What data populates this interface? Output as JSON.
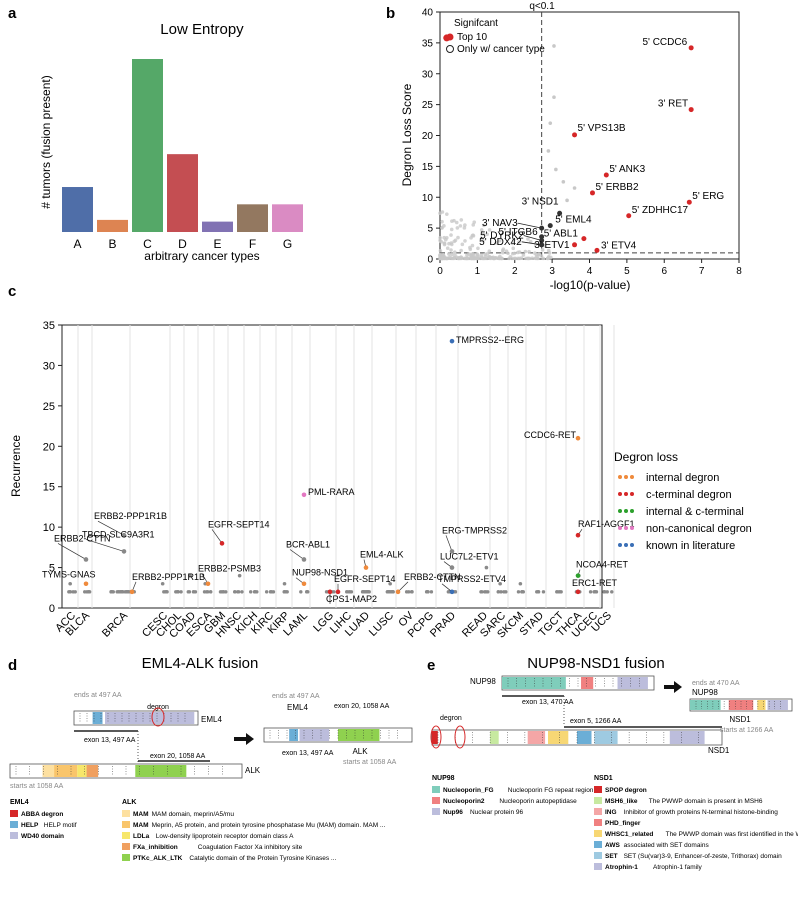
{
  "panel_letters": [
    "a",
    "b",
    "c",
    "d",
    "e"
  ],
  "chart_data": [
    {
      "id": "a",
      "type": "bar",
      "title": "Low Entropy",
      "xlabel": "arbitrary cancer types",
      "ylabel": "# tumors (fusion present)",
      "categories": [
        "A",
        "B",
        "C",
        "D",
        "E",
        "F",
        "G"
      ],
      "values": [
        0.26,
        0.07,
        1.0,
        0.45,
        0.06,
        0.16,
        0.16
      ],
      "colors": [
        "#4f6ea8",
        "#dd8452",
        "#55a868",
        "#c44e52",
        "#8172b3",
        "#937860",
        "#da8bc3"
      ]
    },
    {
      "id": "b",
      "type": "scatter",
      "xlabel": "-log10(p-value)",
      "ylabel": "Degron Loss Score",
      "xlim": [
        0,
        8
      ],
      "ylim": [
        0,
        40
      ],
      "xticks": [
        "0",
        "1",
        "2",
        "3",
        "4",
        "5",
        "6",
        "7",
        "8"
      ],
      "yticks": [
        "0",
        "5",
        "10",
        "15",
        "20",
        "25",
        "30",
        "35",
        "40"
      ],
      "vline_label": "q<0.1",
      "vline_x": 2.72,
      "hline_y": 1.0,
      "legend": {
        "title": "Signifcant",
        "items": [
          "Top 10",
          "Only w/ cancer type"
        ]
      },
      "labeled_points": [
        {
          "label": "5' CCDC6",
          "x": 6.72,
          "y": 34.2,
          "color": "#d62728"
        },
        {
          "label": "3' RET",
          "x": 6.72,
          "y": 24.2,
          "color": "#d62728"
        },
        {
          "label": "5' VPS13B",
          "x": 3.6,
          "y": 20.1,
          "color": "#d62728"
        },
        {
          "label": "5' ANK3",
          "x": 4.45,
          "y": 13.6,
          "color": "#d62728"
        },
        {
          "label": "5' ERBB2",
          "x": 4.08,
          "y": 10.7,
          "color": "#d62728"
        },
        {
          "label": "5' ERG",
          "x": 6.67,
          "y": 9.2,
          "color": "#d62728"
        },
        {
          "label": "5' ZDHHC17",
          "x": 5.05,
          "y": 7.0,
          "color": "#d62728"
        },
        {
          "label": "3' NSD1",
          "x": 3.2,
          "y": 7.4,
          "color": "#333333"
        },
        {
          "label": "5' EML4",
          "x": 2.95,
          "y": 5.4,
          "color": "#333333"
        },
        {
          "label": "3' NAV3",
          "x": 2.72,
          "y": 5.0,
          "color": "#333333"
        },
        {
          "label": "5' ITGB6",
          "x": 2.72,
          "y": 3.6,
          "color": "#333333"
        },
        {
          "label": "5' DYRK2",
          "x": 2.72,
          "y": 3.0,
          "color": "#333333"
        },
        {
          "label": "5' ABL1",
          "x": 3.85,
          "y": 3.3,
          "color": "#d62728"
        },
        {
          "label": "5' DDX42",
          "x": 2.72,
          "y": 2.3,
          "color": "#333333"
        },
        {
          "label": "3' ETV1",
          "x": 3.6,
          "y": 2.3,
          "color": "#d62728"
        },
        {
          "label": "3' ETV4",
          "x": 4.2,
          "y": 1.4,
          "color": "#d62728"
        }
      ]
    },
    {
      "id": "c",
      "type": "scatter",
      "ylabel": "Recurrence",
      "ylim": [
        0,
        35
      ],
      "yticks": [
        "0",
        "5",
        "10",
        "15",
        "20",
        "25",
        "30",
        "35"
      ],
      "categories": [
        "ACC",
        "BLCA",
        "BRCA",
        "CESC",
        "CHOL",
        "COAD",
        "ESCA",
        "GBM",
        "HNSC",
        "KICH",
        "KIRC",
        "KIRP",
        "LAML",
        "LGG",
        "LIHC",
        "LUAD",
        "LUSC",
        "OV",
        "PCPG",
        "PRAD",
        "READ",
        "SARC",
        "SKCM",
        "STAD",
        "TGCT",
        "THCA",
        "UCEC",
        "UCS"
      ],
      "legend": {
        "title": "Degron loss",
        "items": [
          {
            "name": "internal degron",
            "color": "#ef8a3c"
          },
          {
            "name": "c-terminal degron",
            "color": "#d62728"
          },
          {
            "name": "internal & c-terminal",
            "color": "#2ca02c"
          },
          {
            "name": "non-canonical degron",
            "color": "#e377c2"
          },
          {
            "name": "known in literature",
            "color": "#3b6fb6"
          }
        ]
      },
      "labeled_points": [
        {
          "label": "TMPRSS2--ERG",
          "cat": "PRAD",
          "y": 33,
          "color": "#3b6fb6"
        },
        {
          "label": "CCDC6-RET",
          "cat": "THCA",
          "y": 21,
          "color": "#ef8a3c"
        },
        {
          "label": "PML-RARA",
          "cat": "LAML",
          "y": 14,
          "color": "#e377c2"
        },
        {
          "label": "RAF1-AGGF1",
          "cat": "THCA",
          "y": 9,
          "color": "#d62728"
        },
        {
          "label": "ERBB2-PPP1R1B",
          "cat": "BRCA",
          "y": 9,
          "color": "#888888"
        },
        {
          "label": "EGFR-SEPT14",
          "cat": "GBM",
          "y": 8,
          "color": "#d62728"
        },
        {
          "label": "TBCD-SLC9A3R1",
          "cat": "BRCA",
          "y": 7,
          "color": "#888888"
        },
        {
          "label": "ERBB2-CTTN",
          "cat": "BLCA",
          "y": 6,
          "color": "#888888"
        },
        {
          "label": "ERG-TMPRSS2",
          "cat": "PRAD",
          "y": 7,
          "color": "#888888"
        },
        {
          "label": "BCR-ABL1",
          "cat": "LAML",
          "y": 6,
          "color": "#888888"
        },
        {
          "label": "EML4-ALK",
          "cat": "LUAD",
          "y": 5,
          "color": "#ef8a3c"
        },
        {
          "label": "LUC7L2-ETV1",
          "cat": "PRAD",
          "y": 5,
          "color": "#888888"
        },
        {
          "label": "NCOA4-RET",
          "cat": "THCA",
          "y": 4,
          "color": "#2ca02c"
        },
        {
          "label": "TYMS-GNAS",
          "cat": "BLCA",
          "y": 3,
          "color": "#ef8a3c"
        },
        {
          "label": "ERBB2-PSMB3",
          "cat": "ESCA",
          "y": 3,
          "color": "#ef8a3c"
        },
        {
          "label": "NUP98-NSD1",
          "cat": "LAML",
          "y": 3,
          "color": "#ef8a3c"
        },
        {
          "label": "ERBB2-PPP1R1B",
          "cat": "BRCA",
          "y": 2,
          "color": "#ef8a3c"
        },
        {
          "label": "EGFR-SEPT14",
          "cat": "LGG",
          "y": 2,
          "color": "#d62728"
        },
        {
          "label": "CPS1-MAP2",
          "cat": "LGG",
          "y": 2,
          "color": "#d62728"
        },
        {
          "label": "ERBB2-CTTN",
          "cat": "LUSC",
          "y": 2,
          "color": "#ef8a3c"
        },
        {
          "label": "TMPRSS2-ETV4",
          "cat": "PRAD",
          "y": 2,
          "color": "#3b6fb6"
        },
        {
          "label": "ERC1-RET",
          "cat": "THCA",
          "y": 2,
          "color": "#d62728"
        }
      ]
    }
  ],
  "panel_d": {
    "title": "EML4-ALK fusion",
    "eml4_label": "EML4",
    "alk_label": "ALK",
    "ends_at": "ends at 497 AA",
    "starts_at": "starts at 1058 AA",
    "degron": "degron",
    "exon_eml4": "exon 13, 497 AA",
    "exon_alk": "exon 20, 1058 AA",
    "legend_eml4_title": "EML4",
    "legend_eml4": [
      {
        "name": "ABBA degron",
        "desc": "",
        "color": "#d62728"
      },
      {
        "name": "HELP",
        "desc": "HELP motif",
        "color": "#6baed6"
      },
      {
        "name": "WD40 domain",
        "desc": "",
        "color": "#bcbddc"
      }
    ],
    "legend_alk_title": "ALK",
    "legend_alk": [
      {
        "name": "MAM",
        "desc": "MAM domain, meprin/A5/mu",
        "color": "#fde0a0"
      },
      {
        "name": "MAM",
        "desc": "Meprin, A5 protein, and protein tyrosine phosphatase Mu (MAM) domain. MAM ...",
        "color": "#f9c56b"
      },
      {
        "name": "LDLa",
        "desc": "Low-density lipoprotein receptor domain class A",
        "color": "#f7e76b"
      },
      {
        "name": "FXa_inhibition",
        "desc": "Coagulation Factor Xa inhibitory site",
        "color": "#f0a060"
      },
      {
        "name": "PTKc_ALK_LTK",
        "desc": "Catalytic domain of the Protein Tyrosine Kinases ...",
        "color": "#8fd14f"
      }
    ]
  },
  "panel_e": {
    "title": "NUP98-NSD1 fusion",
    "nup98_label": "NUP98",
    "nsd1_label": "NSD1",
    "ends_at": "ends at 470 AA",
    "starts_at": "starts at 1266 AA",
    "degron": "degron",
    "exon_nup98": "exon 13, 470 AA",
    "exon_nsd1": "exon 5, 1266 AA",
    "legend_nup98_title": "NUP98",
    "legend_nup98": [
      {
        "name": "Nucleoporin_FG",
        "desc": "Nucleoporin FG repeat region",
        "color": "#7fcdbb"
      },
      {
        "name": "Nucleoporin2",
        "desc": "Nucleoporin autopeptidase",
        "color": "#f08080"
      },
      {
        "name": "Nup96",
        "desc": "Nuclear protein 96",
        "color": "#bcbddc"
      }
    ],
    "legend_nsd1_title": "NSD1",
    "legend_nsd1": [
      {
        "name": "SPOP degron",
        "desc": "",
        "color": "#d62728"
      },
      {
        "name": "MSH6_like",
        "desc": "The PWWP domain is present in MSH6",
        "color": "#c7e9a0"
      },
      {
        "name": "ING",
        "desc": "Inhibitor of growth proteins N-terminal histone-binding",
        "color": "#f4a6a6"
      },
      {
        "name": "PHD_finger",
        "desc": "",
        "color": "#f08080"
      },
      {
        "name": "WHSC1_related",
        "desc": "The PWWP domain was first identified in the WHSC1",
        "color": "#f7d774"
      },
      {
        "name": "AWS",
        "desc": "associated with SET domains",
        "color": "#6baed6"
      },
      {
        "name": "SET",
        "desc": "SET (Su(var)3-9, Enhancer-of-zeste, Trithorax) domain",
        "color": "#9ecae1"
      },
      {
        "name": "Atrophin-1",
        "desc": "Atrophin-1 family",
        "color": "#bcbddc"
      }
    ]
  }
}
